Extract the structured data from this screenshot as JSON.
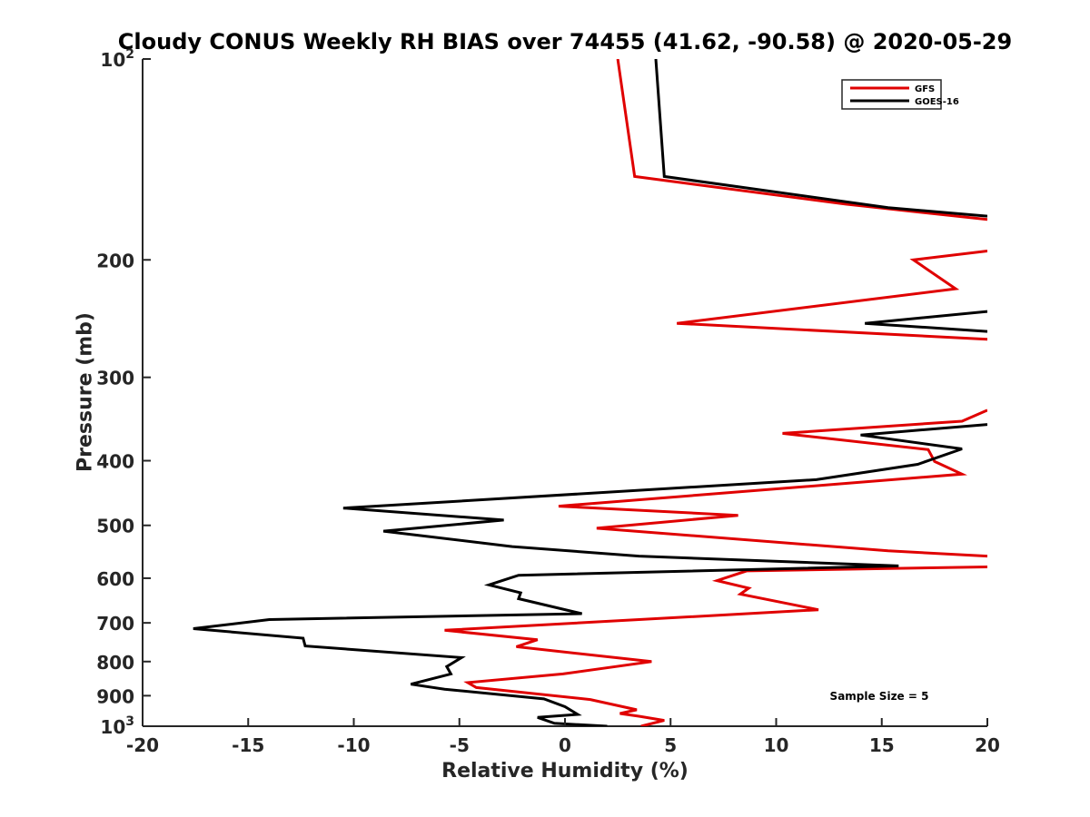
{
  "chart_data": {
    "type": "line",
    "title": "Cloudy CONUS Weekly RH BIAS over 74455 (41.62, -90.58) @ 2020-05-29",
    "xlabel": "Relative Humidity (%)",
    "ylabel": "Pressure (mb)",
    "xlim": [
      -20,
      20
    ],
    "ylim": [
      100,
      1000
    ],
    "y_scale": "log",
    "y_reversed": true,
    "grid": false,
    "x_ticks": [
      -20,
      -15,
      -10,
      -5,
      0,
      5,
      10,
      15,
      20
    ],
    "x_tick_labels": [
      "-20",
      "-15",
      "-10",
      "-5",
      "0",
      "5",
      "10",
      "15",
      "20"
    ],
    "y_ticks": [
      100,
      200,
      300,
      400,
      500,
      600,
      700,
      800,
      900,
      1000
    ],
    "y_tick_labels": [
      {
        "base": "10",
        "exp": "2"
      },
      {
        "base": "200",
        "exp": ""
      },
      {
        "base": "300",
        "exp": ""
      },
      {
        "base": "400",
        "exp": ""
      },
      {
        "base": "500",
        "exp": ""
      },
      {
        "base": "600",
        "exp": ""
      },
      {
        "base": "700",
        "exp": ""
      },
      {
        "base": "800",
        "exp": ""
      },
      {
        "base": "900",
        "exp": ""
      },
      {
        "base": "10",
        "exp": "3"
      }
    ],
    "legend_position": "top-right",
    "annotation": "Sample Size = 5",
    "series": [
      {
        "name": "GFS",
        "color": "#e00000",
        "segments": [
          [
            [
              2.5,
              100
            ],
            [
              3.3,
              150
            ],
            [
              13.3,
              165
            ],
            [
              20,
              174
            ]
          ],
          [
            [
              20,
              194
            ],
            [
              16.5,
              200
            ],
            [
              18.5,
              221
            ],
            [
              5.3,
              249
            ],
            [
              20,
              263
            ]
          ],
          [
            [
              20,
              336
            ],
            [
              18.8,
              349
            ],
            [
              10.3,
              364
            ],
            [
              17.2,
              385
            ],
            [
              17.5,
              401
            ],
            [
              18.8,
              419
            ],
            [
              -0.3,
              468
            ],
            [
              8.2,
              483
            ],
            [
              1.5,
              505
            ],
            [
              15.3,
              546
            ],
            [
              20,
              556
            ]
          ],
          [
            [
              20,
              577
            ],
            [
              8.6,
              585
            ],
            [
              7.2,
              605
            ],
            [
              8.7,
              621
            ],
            [
              8.3,
              634
            ],
            [
              12.0,
              669
            ],
            [
              -5.7,
              718
            ],
            [
              -1.3,
              742
            ],
            [
              -2.3,
              760
            ],
            [
              4.1,
              800
            ],
            [
              -0.1,
              835
            ],
            [
              -4.6,
              860
            ],
            [
              -4.2,
              875
            ],
            [
              1.2,
              912
            ],
            [
              3.4,
              945
            ],
            [
              2.6,
              957
            ],
            [
              3.5,
              966
            ],
            [
              4.7,
              980
            ],
            [
              3.6,
              1000
            ]
          ]
        ]
      },
      {
        "name": "GOES-16",
        "color": "#000000",
        "segments": [
          [
            [
              4.3,
              100
            ],
            [
              4.7,
              150
            ],
            [
              15.3,
              167
            ],
            [
              20,
              172
            ]
          ],
          [
            [
              20,
              239
            ],
            [
              14.2,
              249
            ],
            [
              20,
              256
            ]
          ],
          [
            [
              20,
              353
            ],
            [
              14.0,
              366
            ],
            [
              18.8,
              384
            ],
            [
              16.7,
              405
            ],
            [
              11.9,
              427
            ],
            [
              -10.5,
              471
            ],
            [
              -2.9,
              491
            ],
            [
              -8.6,
              510
            ],
            [
              -2.5,
              538
            ],
            [
              3.5,
              556
            ],
            [
              15.8,
              575
            ],
            [
              -2.2,
              594
            ],
            [
              -3.6,
              614
            ],
            [
              -2.1,
              631
            ],
            [
              -2.2,
              644
            ],
            [
              0.8,
              678
            ],
            [
              -14.0,
              692
            ],
            [
              -17.6,
              714
            ],
            [
              -12.4,
              738
            ],
            [
              -12.3,
              758
            ],
            [
              -4.9,
              789
            ],
            [
              -5.6,
              814
            ],
            [
              -5.4,
              835
            ],
            [
              -7.3,
              865
            ],
            [
              -5.7,
              880
            ],
            [
              -1.0,
              910
            ],
            [
              0.0,
              935
            ],
            [
              0.6,
              960
            ],
            [
              -1.3,
              970
            ],
            [
              -0.5,
              990
            ],
            [
              2.0,
              1000
            ]
          ]
        ]
      }
    ]
  }
}
